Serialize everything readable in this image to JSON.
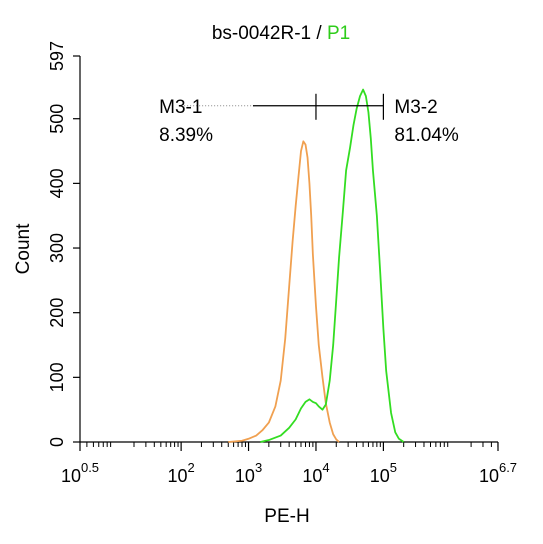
{
  "chart_data": {
    "type": "line",
    "title": "bs-0042R-1 / P1",
    "title_parts": {
      "sample": "bs-0042R-1",
      "separator": " / ",
      "gate": "P1",
      "gate_color": "#2ecc1a"
    },
    "xlabel": "PE-H",
    "ylabel": "Count",
    "x_scale": "log",
    "xlim": [
      3.1623,
      5011872
    ],
    "ylim": [
      0,
      597
    ],
    "x_ticks": [
      {
        "value": 3.1623,
        "base": "10",
        "exp": "0.5"
      },
      {
        "value": 100,
        "base": "10",
        "exp": "2"
      },
      {
        "value": 1000,
        "base": "10",
        "exp": "3"
      },
      {
        "value": 10000,
        "base": "10",
        "exp": "4"
      },
      {
        "value": 100000,
        "base": "10",
        "exp": "5"
      },
      {
        "value": 5011872,
        "base": "10",
        "exp": "6.7"
      }
    ],
    "y_ticks": [
      0,
      100,
      200,
      300,
      400,
      500,
      597
    ],
    "grid": false,
    "series": [
      {
        "color": "#f0a050",
        "x": [
          500,
          800,
          1000,
          1300,
          1600,
          2000,
          2500,
          3000,
          3500,
          4000,
          4500,
          5000,
          5500,
          6000,
          6500,
          7000,
          7500,
          8000,
          8500,
          9000,
          10000,
          11000,
          12500,
          14000,
          16000,
          18000,
          20000,
          22000
        ],
        "y": [
          0,
          2,
          5,
          10,
          18,
          30,
          55,
          95,
          160,
          240,
          310,
          365,
          410,
          450,
          465,
          460,
          440,
          400,
          350,
          290,
          210,
          150,
          100,
          60,
          30,
          12,
          4,
          0
        ]
      },
      {
        "color": "#33dd22",
        "x": [
          1500,
          2000,
          3000,
          4000,
          5000,
          6000,
          7000,
          8000,
          9000,
          10000,
          11000,
          12500,
          14000,
          16000,
          18000,
          20000,
          22000,
          25000,
          28000,
          32000,
          36000,
          40000,
          45000,
          50000,
          55000,
          60000,
          65000,
          70000,
          80000,
          90000,
          100000,
          110000,
          130000,
          150000,
          170000,
          200000
        ],
        "y": [
          0,
          3,
          10,
          22,
          35,
          52,
          62,
          66,
          62,
          60,
          55,
          50,
          58,
          95,
          150,
          220,
          285,
          355,
          420,
          455,
          490,
          515,
          535,
          545,
          535,
          510,
          470,
          420,
          350,
          260,
          175,
          110,
          45,
          15,
          5,
          0
        ]
      }
    ],
    "markers": [
      {
        "name": "M3-1",
        "percent": "8.39%",
        "from": 100,
        "to": 10000
      },
      {
        "name": "M3-2",
        "percent": "81.04%",
        "from": 10000,
        "to": 100000
      }
    ]
  }
}
